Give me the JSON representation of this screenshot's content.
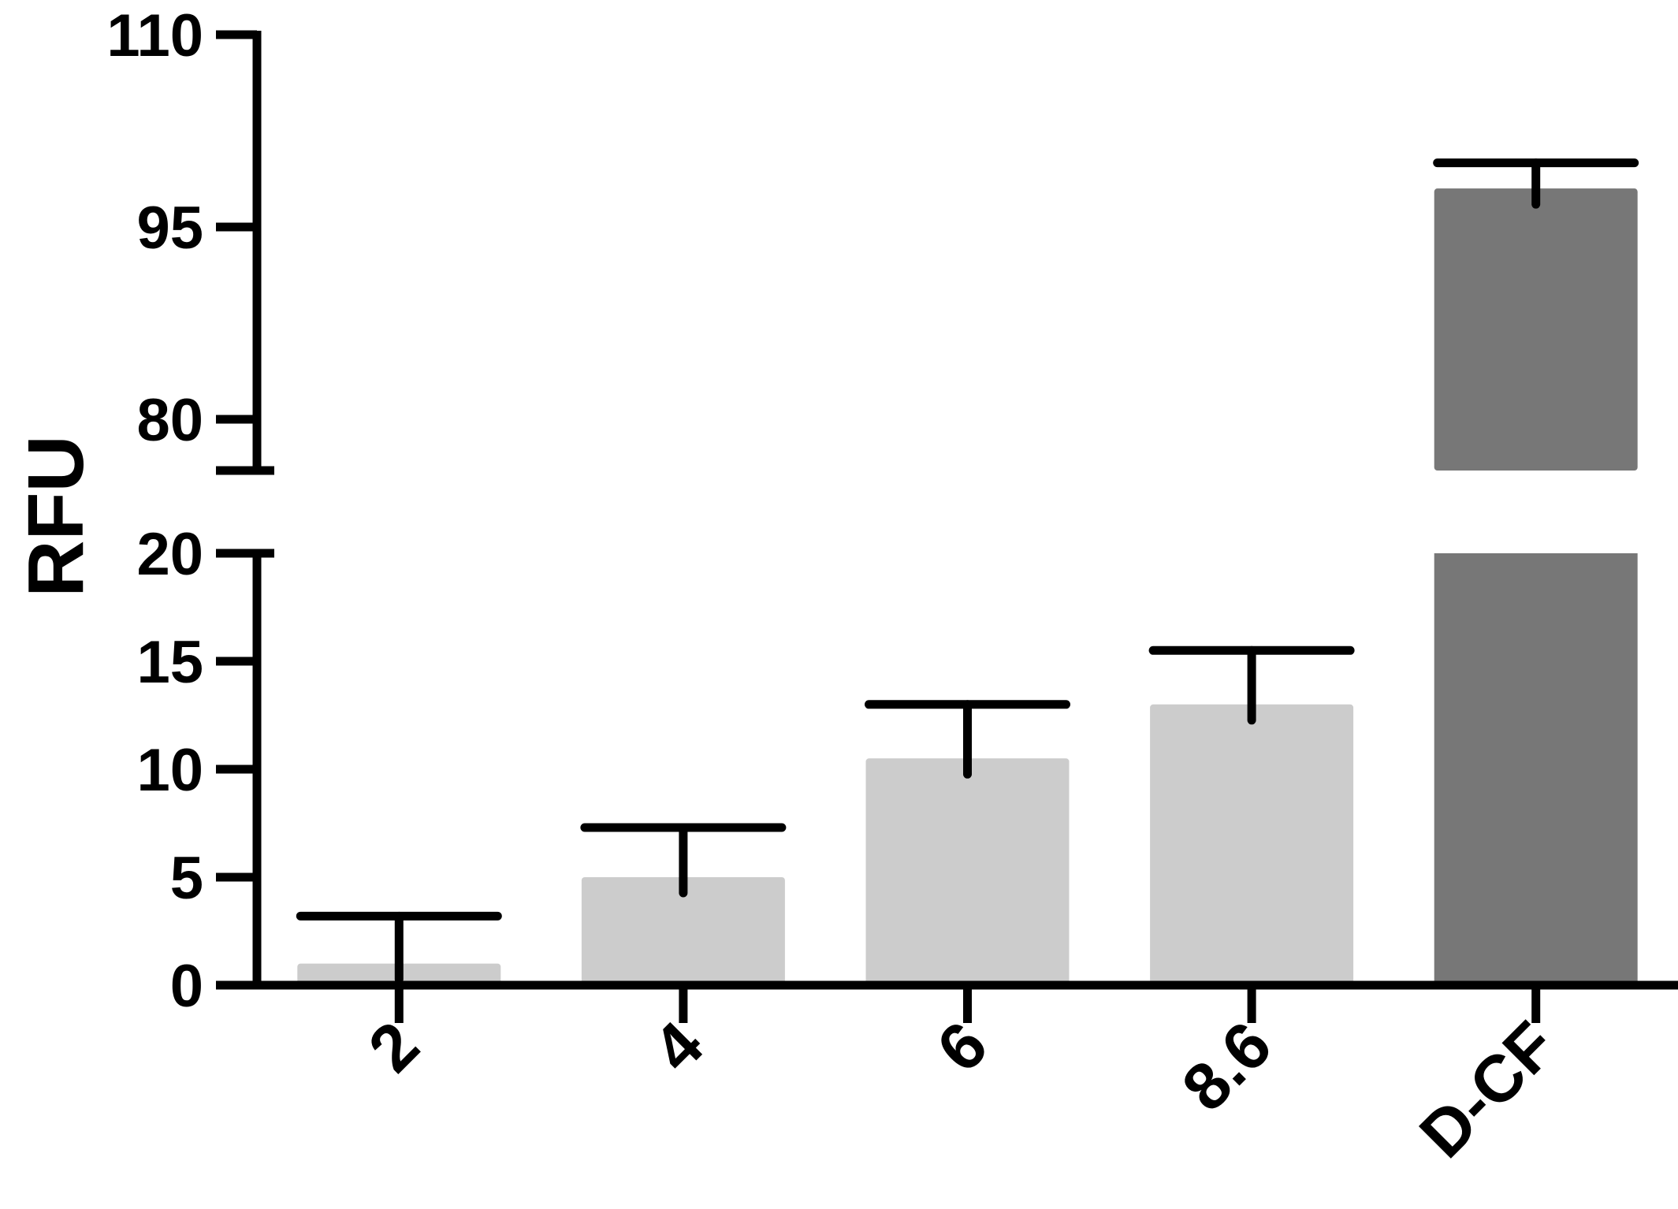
{
  "chart_data": {
    "type": "bar",
    "title": "",
    "xlabel": "",
    "ylabel": "RFU",
    "categories": [
      "2",
      "4",
      "6",
      "8.6",
      "D-CF"
    ],
    "values": [
      1.0,
      5.0,
      10.5,
      13.0,
      98.0
    ],
    "errors": [
      2.2,
      2.3,
      2.5,
      2.5,
      2.0
    ],
    "bar_colors": [
      "#cccccc",
      "#cccccc",
      "#cccccc",
      "#cccccc",
      "#777777"
    ],
    "axis_break": {
      "lower_range": [
        0,
        20
      ],
      "upper_range": [
        76,
        110
      ]
    },
    "y_ticks_lower": [
      0,
      5,
      10,
      15,
      20
    ],
    "y_ticks_upper": [
      80,
      95,
      110
    ],
    "grid": false,
    "legend": "none"
  }
}
